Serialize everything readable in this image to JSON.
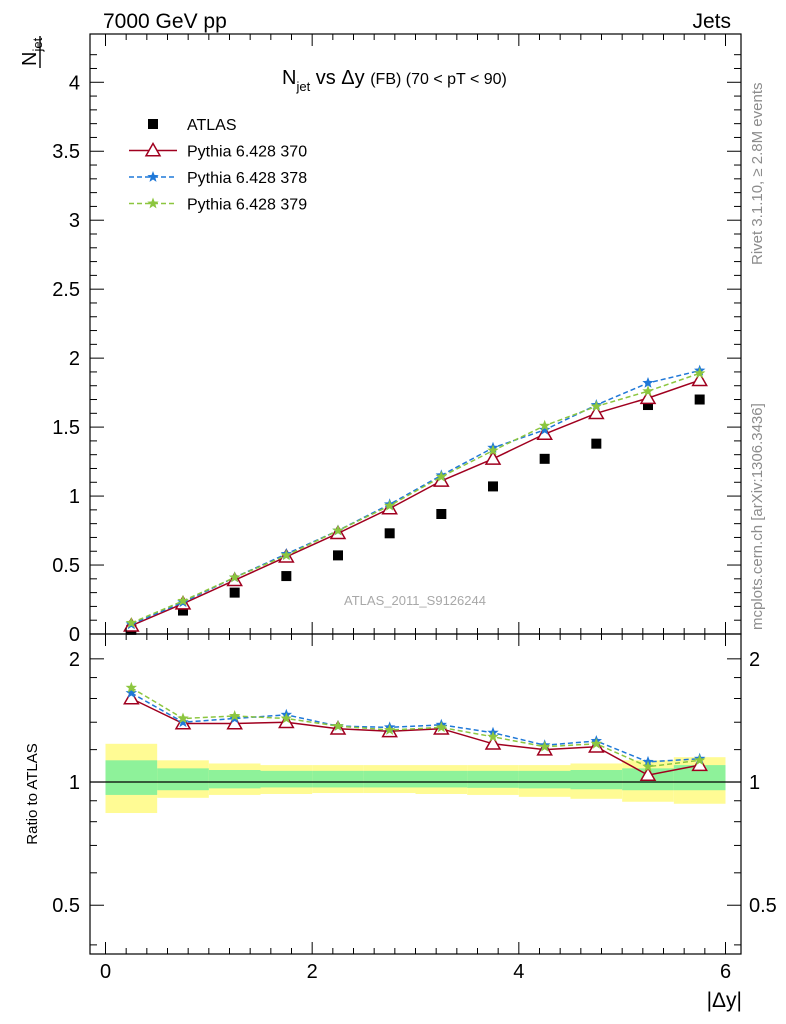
{
  "header": {
    "left": "7000 GeV pp",
    "right": "Jets"
  },
  "side_labels": {
    "rivet": "Rivet 3.1.10, ≥ 2.8M events",
    "mcplots": "mcplots.cern.ch [arXiv:1306.3436]"
  },
  "chart_data": [
    {
      "type": "scatter",
      "title": {
        "main": "N",
        "main_sub": "jet",
        "rest": " vs Δy ",
        "small": "(FB)",
        "tail": " (70 < pT <  90)"
      },
      "ylabel": {
        "main": "N",
        "sub": "jet"
      },
      "watermark": "ATLAS_2011_S9126244",
      "xlim": [
        -0.15,
        6.15
      ],
      "ylim": [
        0,
        4.35
      ],
      "yticks": [
        0,
        0.5,
        1,
        1.5,
        2,
        2.5,
        3,
        3.5,
        4
      ],
      "ytick_labels": [
        "0",
        "0.5",
        "1",
        "1.5",
        "2",
        "2.5",
        "3",
        "3.5",
        "4"
      ],
      "legend_position": "top-left",
      "x": [
        0.25,
        0.75,
        1.25,
        1.75,
        2.25,
        2.75,
        3.25,
        3.75,
        4.25,
        4.75,
        5.25,
        5.75
      ],
      "series": [
        {
          "name": "ATLAS",
          "color": "#000000",
          "marker": "square",
          "line": "none",
          "values": [
            0.03,
            0.17,
            0.3,
            0.42,
            0.57,
            0.73,
            0.87,
            1.07,
            1.27,
            1.38,
            1.66,
            1.7
          ]
        },
        {
          "name": "Pythia 6.428 370",
          "color": "#a0001f",
          "marker": "triangle-open",
          "line": "solid",
          "values": [
            0.06,
            0.22,
            0.39,
            0.56,
            0.73,
            0.91,
            1.11,
            1.27,
            1.45,
            1.6,
            1.71,
            1.84
          ]
        },
        {
          "name": "Pythia 6.428 378",
          "color": "#1f78d8",
          "marker": "star",
          "line": "dashed",
          "values": [
            0.07,
            0.23,
            0.41,
            0.58,
            0.75,
            0.94,
            1.15,
            1.35,
            1.48,
            1.66,
            1.82,
            1.91
          ]
        },
        {
          "name": "Pythia 6.428 379",
          "color": "#8cc63f",
          "marker": "star",
          "line": "dashed",
          "values": [
            0.08,
            0.24,
            0.41,
            0.57,
            0.75,
            0.93,
            1.14,
            1.33,
            1.51,
            1.65,
            1.76,
            1.89
          ]
        }
      ]
    },
    {
      "type": "scatter",
      "ylabel": "Ratio to ATLAS",
      "xlabel": "|Δy|",
      "xlim": [
        -0.15,
        6.15
      ],
      "ylim": [
        0.38,
        2.3
      ],
      "log_y": true,
      "xticks": [
        0,
        2,
        4,
        6
      ],
      "xtick_labels": [
        "0",
        "2",
        "4",
        "6"
      ],
      "yticks": [
        0.5,
        1,
        2
      ],
      "ytick_labels": [
        "0.5",
        "1",
        "2"
      ],
      "reference_line": 1,
      "bins": [
        [
          0,
          0.5
        ],
        [
          0.5,
          1
        ],
        [
          1,
          1.5
        ],
        [
          1.5,
          2
        ],
        [
          2,
          2.5
        ],
        [
          2.5,
          3
        ],
        [
          3,
          3.5
        ],
        [
          3.5,
          4
        ],
        [
          4,
          4.5
        ],
        [
          4.5,
          5
        ],
        [
          5,
          5.5
        ],
        [
          5.5,
          6
        ]
      ],
      "band_stat": [
        [
          0.93,
          1.13
        ],
        [
          0.955,
          1.08
        ],
        [
          0.965,
          1.07
        ],
        [
          0.97,
          1.065
        ],
        [
          0.97,
          1.065
        ],
        [
          0.97,
          1.065
        ],
        [
          0.97,
          1.065
        ],
        [
          0.968,
          1.065
        ],
        [
          0.965,
          1.065
        ],
        [
          0.96,
          1.07
        ],
        [
          0.955,
          1.08
        ],
        [
          0.955,
          1.1
        ]
      ],
      "band_total": [
        [
          0.84,
          1.24
        ],
        [
          0.915,
          1.13
        ],
        [
          0.93,
          1.11
        ],
        [
          0.935,
          1.1
        ],
        [
          0.94,
          1.1
        ],
        [
          0.94,
          1.1
        ],
        [
          0.935,
          1.1
        ],
        [
          0.93,
          1.1
        ],
        [
          0.92,
          1.1
        ],
        [
          0.91,
          1.11
        ],
        [
          0.895,
          1.13
        ],
        [
          0.885,
          1.15
        ]
      ],
      "band_colors": {
        "total": "#fffb94",
        "stat": "#8ef29a"
      },
      "x": [
        0.25,
        0.75,
        1.25,
        1.75,
        2.25,
        2.75,
        3.25,
        3.75,
        4.25,
        4.75,
        5.25,
        5.75
      ],
      "series": [
        {
          "name": "Pythia 6.428 370",
          "color": "#a0001f",
          "marker": "triangle-open",
          "line": "solid",
          "values": [
            1.6,
            1.39,
            1.39,
            1.4,
            1.35,
            1.33,
            1.35,
            1.24,
            1.2,
            1.22,
            1.04,
            1.1
          ]
        },
        {
          "name": "Pythia 6.428 378",
          "color": "#1f78d8",
          "marker": "star",
          "line": "dashed",
          "values": [
            1.65,
            1.4,
            1.43,
            1.46,
            1.37,
            1.36,
            1.38,
            1.32,
            1.23,
            1.26,
            1.12,
            1.14
          ]
        },
        {
          "name": "Pythia 6.428 379",
          "color": "#8cc63f",
          "marker": "star",
          "line": "dashed",
          "values": [
            1.7,
            1.43,
            1.45,
            1.43,
            1.37,
            1.34,
            1.36,
            1.29,
            1.22,
            1.24,
            1.09,
            1.13
          ]
        }
      ]
    }
  ]
}
